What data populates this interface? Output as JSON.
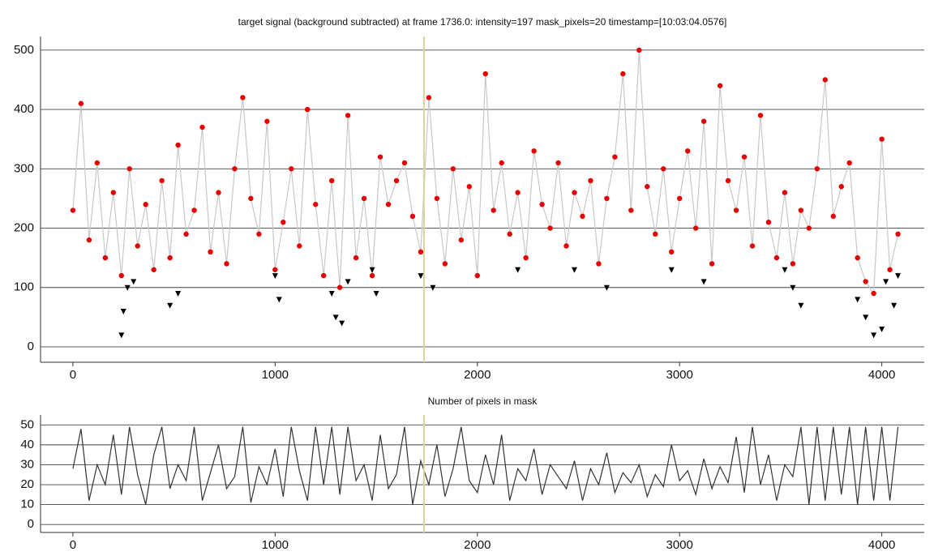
{
  "chart_data": [
    {
      "type": "scatter",
      "title": "target signal (background subtracted) at frame 1736.0: intensity=197 mask_pixels=20 timestamp=[10:03:04.0576]",
      "xlim": [
        -160,
        4210
      ],
      "ylim": [
        -26,
        523
      ],
      "xticks": [
        0,
        1000,
        2000,
        3000,
        4000
      ],
      "yticks": [
        0,
        100,
        200,
        300,
        400,
        500
      ],
      "grid": true,
      "vline": 1736,
      "vline_color": "#d6d69a",
      "series": [
        {
          "color": "#e60000",
          "marker": "circle",
          "line_color": "#c8c8c8",
          "x": [
            0,
            40,
            80,
            120,
            160,
            200,
            240,
            280,
            320,
            360,
            400,
            440,
            480,
            520,
            560,
            600,
            640,
            680,
            720,
            760,
            800,
            840,
            880,
            920,
            960,
            1000,
            1040,
            1080,
            1120,
            1160,
            1200,
            1240,
            1280,
            1320,
            1360,
            1400,
            1440,
            1480,
            1520,
            1560,
            1600,
            1640,
            1680,
            1720,
            1760,
            1800,
            1840,
            1880,
            1920,
            1960,
            2000,
            2040,
            2080,
            2120,
            2160,
            2200,
            2240,
            2280,
            2320,
            2360,
            2400,
            2440,
            2480,
            2520,
            2560,
            2600,
            2640,
            2680,
            2720,
            2760,
            2800,
            2840,
            2880,
            2920,
            2960,
            3000,
            3040,
            3080,
            3120,
            3160,
            3200,
            3240,
            3280,
            3320,
            3360,
            3400,
            3440,
            3480,
            3520,
            3560,
            3600,
            3640,
            3680,
            3720,
            3760,
            3800,
            3840,
            3880,
            3920,
            3960,
            4000,
            4040,
            4080
          ],
          "values": [
            230,
            410,
            180,
            310,
            150,
            260,
            120,
            300,
            170,
            240,
            130,
            280,
            150,
            340,
            190,
            230,
            370,
            160,
            260,
            140,
            300,
            420,
            250,
            190,
            380,
            130,
            210,
            300,
            170,
            400,
            240,
            120,
            280,
            100,
            390,
            150,
            250,
            120,
            320,
            240,
            280,
            310,
            220,
            160,
            420,
            250,
            140,
            300,
            180,
            270,
            120,
            460,
            230,
            310,
            190,
            260,
            150,
            330,
            240,
            200,
            310,
            170,
            260,
            220,
            280,
            140,
            250,
            320,
            460,
            230,
            500,
            270,
            190,
            300,
            160,
            250,
            330,
            200,
            380,
            140,
            440,
            280,
            230,
            320,
            170,
            390,
            210,
            150,
            260,
            140,
            230,
            200,
            300,
            450,
            220,
            270,
            310,
            150,
            110,
            90,
            350,
            130,
            190
          ]
        },
        {
          "color": "#000000",
          "marker": "triangle",
          "x": [
            240,
            250,
            270,
            300,
            480,
            520,
            1000,
            1020,
            1280,
            1300,
            1330,
            1360,
            1480,
            1500,
            1720,
            1780,
            2200,
            2480,
            2640,
            2960,
            3120,
            3520,
            3560,
            3600,
            3880,
            3920,
            3960,
            4000,
            4020,
            4060,
            4080
          ],
          "values": [
            20,
            60,
            100,
            110,
            70,
            90,
            120,
            80,
            90,
            50,
            40,
            110,
            130,
            90,
            120,
            100,
            130,
            130,
            100,
            130,
            110,
            130,
            100,
            70,
            80,
            50,
            20,
            30,
            110,
            70,
            120
          ]
        }
      ]
    },
    {
      "type": "line",
      "title": "Number of pixels in mask",
      "xlim": [
        -160,
        4210
      ],
      "ylim": [
        -4,
        55
      ],
      "xticks": [
        0,
        1000,
        2000,
        3000,
        4000
      ],
      "yticks": [
        0,
        10,
        20,
        30,
        40,
        50
      ],
      "grid": true,
      "vline": 1736,
      "vline_color": "#d6d69a",
      "series": [
        {
          "color": "#333333",
          "x": [
            0,
            40,
            80,
            120,
            160,
            200,
            240,
            280,
            320,
            360,
            400,
            440,
            480,
            520,
            560,
            600,
            640,
            680,
            720,
            760,
            800,
            840,
            880,
            920,
            960,
            1000,
            1040,
            1080,
            1120,
            1160,
            1200,
            1240,
            1280,
            1320,
            1360,
            1400,
            1440,
            1480,
            1520,
            1560,
            1600,
            1640,
            1680,
            1720,
            1760,
            1800,
            1840,
            1880,
            1920,
            1960,
            2000,
            2040,
            2080,
            2120,
            2160,
            2200,
            2240,
            2280,
            2320,
            2360,
            2400,
            2440,
            2480,
            2520,
            2560,
            2600,
            2640,
            2680,
            2720,
            2760,
            2800,
            2840,
            2880,
            2920,
            2960,
            3000,
            3040,
            3080,
            3120,
            3160,
            3200,
            3240,
            3280,
            3320,
            3360,
            3400,
            3440,
            3480,
            3520,
            3560,
            3600,
            3640,
            3680,
            3720,
            3760,
            3800,
            3840,
            3880,
            3920,
            3960,
            4000,
            4040,
            4080
          ],
          "values": [
            28,
            48,
            12,
            30,
            20,
            45,
            15,
            49,
            25,
            10,
            35,
            49,
            18,
            30,
            22,
            49,
            12,
            26,
            40,
            18,
            24,
            49,
            11,
            29,
            20,
            38,
            14,
            49,
            27,
            12,
            49,
            20,
            49,
            15,
            49,
            22,
            30,
            12,
            45,
            18,
            25,
            49,
            10,
            32,
            20,
            40,
            14,
            28,
            49,
            22,
            16,
            35,
            20,
            45,
            12,
            28,
            22,
            38,
            15,
            30,
            24,
            18,
            32,
            12,
            28,
            20,
            36,
            16,
            26,
            21,
            30,
            14,
            25,
            19,
            40,
            22,
            27,
            15,
            33,
            18,
            29,
            21,
            44,
            16,
            49,
            20,
            35,
            12,
            30,
            24,
            49,
            10,
            49,
            12,
            49,
            15,
            49,
            10,
            49,
            12,
            49,
            12,
            49
          ]
        }
      ]
    }
  ]
}
